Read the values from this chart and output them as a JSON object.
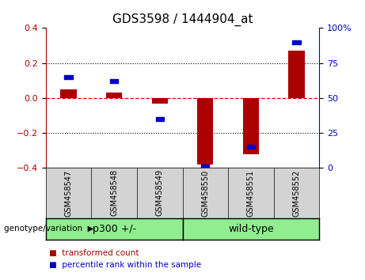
{
  "title": "GDS3598 / 1444904_at",
  "categories": [
    "GSM458547",
    "GSM458548",
    "GSM458549",
    "GSM458550",
    "GSM458551",
    "GSM458552"
  ],
  "red_values": [
    0.05,
    0.03,
    -0.03,
    -0.38,
    -0.32,
    0.27
  ],
  "blue_values": [
    65,
    62,
    35,
    1,
    15,
    90
  ],
  "ylim": [
    -0.4,
    0.4
  ],
  "y2lim": [
    0,
    100
  ],
  "yticks": [
    -0.4,
    -0.2,
    0.0,
    0.2,
    0.4
  ],
  "y2ticks": [
    0,
    25,
    50,
    75,
    100
  ],
  "y2ticklabels": [
    "0",
    "25",
    "50",
    "75",
    "100%"
  ],
  "red_color": "#aa0000",
  "blue_color": "#0000cc",
  "group1_label": "p300 +/-",
  "group2_label": "wild-type",
  "group_color": "#90ee90",
  "legend_red": "transformed count",
  "legend_blue": "percentile rank within the sample",
  "genotype_label": "genotype/variation",
  "bar_width": 0.35
}
